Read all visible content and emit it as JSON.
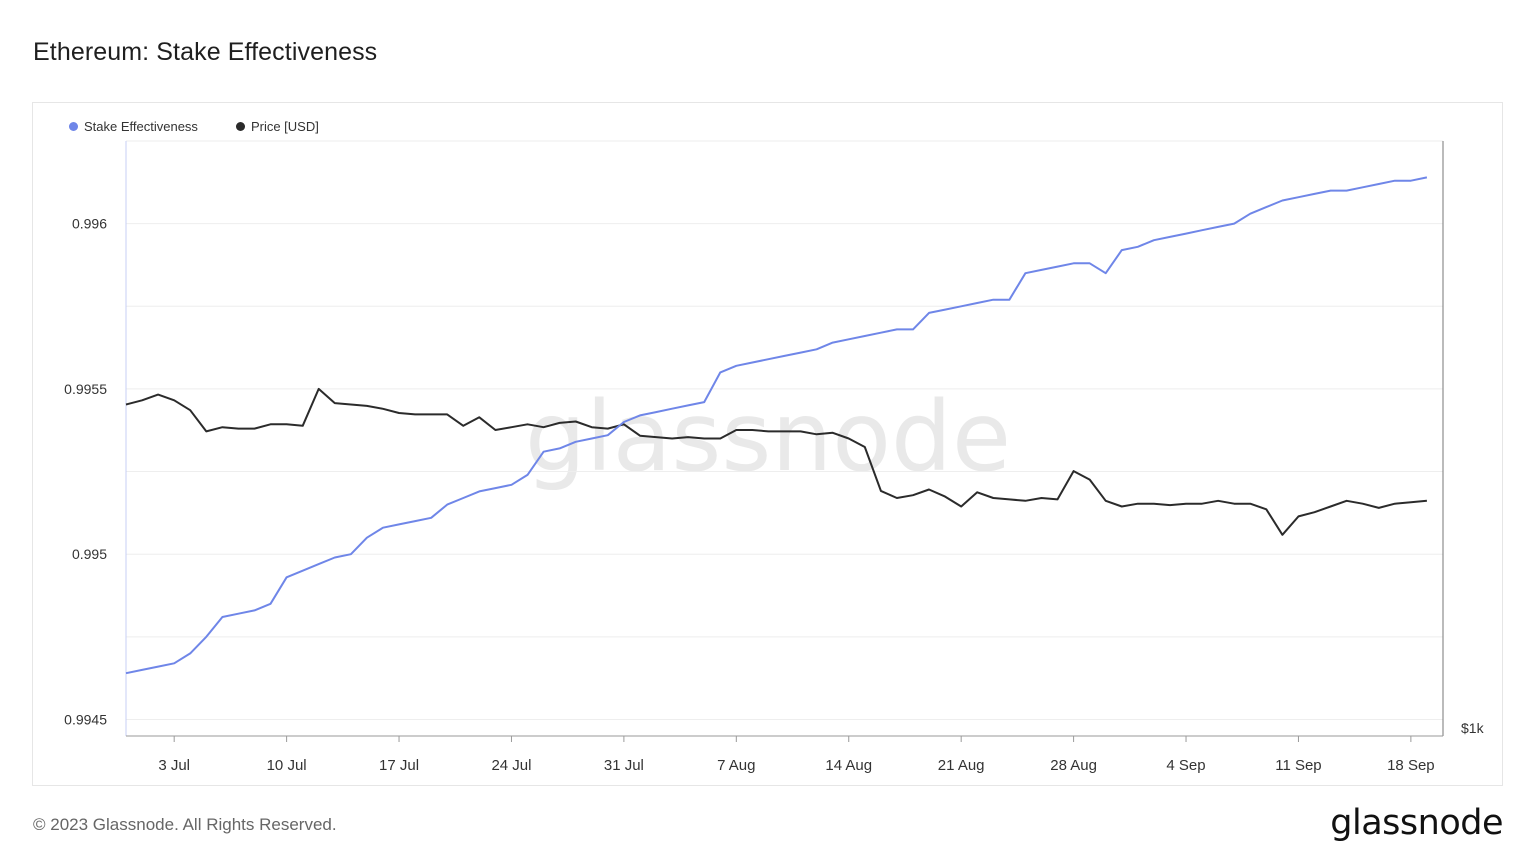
{
  "page": {
    "title": "Ethereum: Stake Effectiveness"
  },
  "footer": {
    "copyright": "© 2023 Glassnode. All Rights Reserved.",
    "brand": "glassnode"
  },
  "watermark": "glassnode",
  "colors": {
    "stake": "#6f86e8",
    "price": "#2b2b2b",
    "grid": "#eeeeee",
    "axis": "#9a9a9a"
  },
  "chart_data": {
    "type": "line",
    "title": "Ethereum: Stake Effectiveness",
    "legend_position": "top-left",
    "grid": true,
    "x_ticks": [
      "3 Jul",
      "10 Jul",
      "17 Jul",
      "24 Jul",
      "31 Jul",
      "7 Aug",
      "14 Aug",
      "21 Aug",
      "28 Aug",
      "4 Sep",
      "11 Sep",
      "18 Sep"
    ],
    "x_range": [
      "2023-06-30",
      "2023-09-20"
    ],
    "y_left": {
      "ticks": [
        "0.9945",
        "0.995",
        "0.9955",
        "0.996"
      ],
      "range": [
        0.99445,
        0.99625
      ]
    },
    "y_right": {
      "ticks": [
        "$1k"
      ]
    },
    "series": [
      {
        "name": "Stake Effectiveness",
        "axis": "left",
        "dates": [
          "2023-06-30",
          "2023-07-01",
          "2023-07-02",
          "2023-07-03",
          "2023-07-04",
          "2023-07-05",
          "2023-07-06",
          "2023-07-07",
          "2023-07-08",
          "2023-07-09",
          "2023-07-10",
          "2023-07-11",
          "2023-07-12",
          "2023-07-13",
          "2023-07-14",
          "2023-07-15",
          "2023-07-16",
          "2023-07-17",
          "2023-07-18",
          "2023-07-19",
          "2023-07-20",
          "2023-07-21",
          "2023-07-22",
          "2023-07-23",
          "2023-07-24",
          "2023-07-25",
          "2023-07-26",
          "2023-07-27",
          "2023-07-28",
          "2023-07-29",
          "2023-07-30",
          "2023-07-31",
          "2023-08-01",
          "2023-08-02",
          "2023-08-03",
          "2023-08-04",
          "2023-08-05",
          "2023-08-06",
          "2023-08-07",
          "2023-08-08",
          "2023-08-09",
          "2023-08-10",
          "2023-08-11",
          "2023-08-12",
          "2023-08-13",
          "2023-08-14",
          "2023-08-15",
          "2023-08-16",
          "2023-08-17",
          "2023-08-18",
          "2023-08-19",
          "2023-08-20",
          "2023-08-21",
          "2023-08-22",
          "2023-08-23",
          "2023-08-24",
          "2023-08-25",
          "2023-08-26",
          "2023-08-27",
          "2023-08-28",
          "2023-08-29",
          "2023-08-30",
          "2023-08-31",
          "2023-09-01",
          "2023-09-02",
          "2023-09-03",
          "2023-09-04",
          "2023-09-05",
          "2023-09-06",
          "2023-09-07",
          "2023-09-08",
          "2023-09-09",
          "2023-09-10",
          "2023-09-11",
          "2023-09-12",
          "2023-09-13",
          "2023-09-14",
          "2023-09-15",
          "2023-09-16",
          "2023-09-17",
          "2023-09-18",
          "2023-09-19"
        ],
        "values": [
          0.99464,
          0.99465,
          0.99466,
          0.99467,
          0.9947,
          0.99475,
          0.99481,
          0.99482,
          0.99483,
          0.99485,
          0.99493,
          0.99495,
          0.99497,
          0.99499,
          0.995,
          0.99505,
          0.99508,
          0.99509,
          0.9951,
          0.99511,
          0.99515,
          0.99517,
          0.99519,
          0.9952,
          0.99521,
          0.99524,
          0.99531,
          0.99532,
          0.99534,
          0.99535,
          0.99536,
          0.9954,
          0.99542,
          0.99543,
          0.99544,
          0.99545,
          0.99546,
          0.99555,
          0.99557,
          0.99558,
          0.99559,
          0.9956,
          0.99561,
          0.99562,
          0.99564,
          0.99565,
          0.99566,
          0.99567,
          0.99568,
          0.99568,
          0.99573,
          0.99574,
          0.99575,
          0.99576,
          0.99577,
          0.99577,
          0.99585,
          0.99586,
          0.99587,
          0.99588,
          0.99588,
          0.99585,
          0.99592,
          0.99593,
          0.99595,
          0.99596,
          0.99597,
          0.99598,
          0.99599,
          0.996,
          0.99603,
          0.99605,
          0.99607,
          0.99608,
          0.99609,
          0.9961,
          0.9961,
          0.99611,
          0.99612,
          0.99613,
          0.99613,
          0.99614
        ]
      },
      {
        "name": "Price [USD]",
        "axis": "right",
        "dates": [
          "2023-06-30",
          "2023-07-01",
          "2023-07-02",
          "2023-07-03",
          "2023-07-04",
          "2023-07-05",
          "2023-07-06",
          "2023-07-07",
          "2023-07-08",
          "2023-07-09",
          "2023-07-10",
          "2023-07-11",
          "2023-07-12",
          "2023-07-13",
          "2023-07-14",
          "2023-07-15",
          "2023-07-16",
          "2023-07-17",
          "2023-07-18",
          "2023-07-19",
          "2023-07-20",
          "2023-07-21",
          "2023-07-22",
          "2023-07-23",
          "2023-07-24",
          "2023-07-25",
          "2023-07-26",
          "2023-07-27",
          "2023-07-28",
          "2023-07-29",
          "2023-07-30",
          "2023-07-31",
          "2023-08-01",
          "2023-08-02",
          "2023-08-03",
          "2023-08-04",
          "2023-08-05",
          "2023-08-06",
          "2023-08-07",
          "2023-08-08",
          "2023-08-09",
          "2023-08-10",
          "2023-08-11",
          "2023-08-12",
          "2023-08-13",
          "2023-08-14",
          "2023-08-15",
          "2023-08-16",
          "2023-08-17",
          "2023-08-18",
          "2023-08-19",
          "2023-08-20",
          "2023-08-21",
          "2023-08-22",
          "2023-08-23",
          "2023-08-24",
          "2023-08-25",
          "2023-08-26",
          "2023-08-27",
          "2023-08-28",
          "2023-08-29",
          "2023-08-30",
          "2023-08-31",
          "2023-09-01",
          "2023-09-02",
          "2023-09-03",
          "2023-09-04",
          "2023-09-05",
          "2023-09-06",
          "2023-09-07",
          "2023-09-08",
          "2023-09-09",
          "2023-09-10",
          "2023-09-11",
          "2023-09-12",
          "2023-09-13",
          "2023-09-14",
          "2023-09-15",
          "2023-09-16",
          "2023-09-17",
          "2023-09-18",
          "2023-09-19"
        ],
        "values": [
          1934,
          1937,
          1941,
          1937,
          1930,
          1915,
          1918,
          1917,
          1917,
          1920,
          1920,
          1919,
          1945,
          1935,
          1934,
          1933,
          1931,
          1928,
          1927,
          1927,
          1927,
          1919,
          1925,
          1916,
          1918,
          1920,
          1918,
          1921,
          1922,
          1918,
          1917,
          1920,
          1912,
          1911,
          1910,
          1911,
          1910,
          1910,
          1916,
          1916,
          1915,
          1915,
          1915,
          1913,
          1914,
          1910,
          1904,
          1873,
          1868,
          1870,
          1874,
          1869,
          1862,
          1872,
          1868,
          1867,
          1866,
          1868,
          1867,
          1887,
          1881,
          1866,
          1862,
          1864,
          1864,
          1863,
          1864,
          1864,
          1866,
          1864,
          1864,
          1860,
          1842,
          1855,
          1858,
          1862,
          1866,
          1864,
          1861,
          1864,
          1865,
          1866
        ]
      }
    ]
  }
}
